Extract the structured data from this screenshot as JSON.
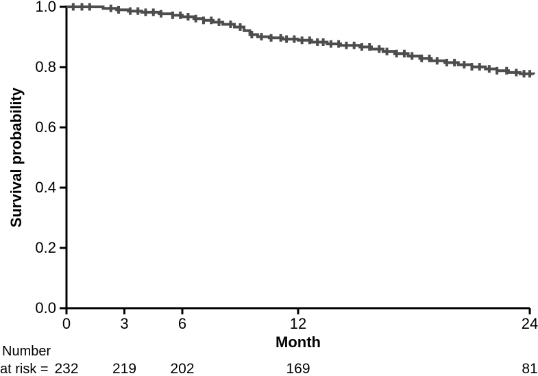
{
  "chart_data": {
    "type": "line",
    "subtype": "kaplan-meier-step",
    "title": "",
    "xlabel": "Month",
    "ylabel": "Survival probability",
    "xlim": [
      0,
      24
    ],
    "ylim": [
      0.0,
      1.0
    ],
    "x_ticks": [
      0,
      3,
      6,
      12,
      24
    ],
    "y_ticks": [
      0.0,
      0.2,
      0.4,
      0.6,
      0.8,
      1.0
    ],
    "grid": false,
    "legend": null,
    "curve_color": "#4d4d4d",
    "axis_color": "#000000",
    "km_points": [
      [
        0,
        1.0
      ],
      [
        1.9,
        0.995
      ],
      [
        2.6,
        0.99
      ],
      [
        3.2,
        0.986
      ],
      [
        3.9,
        0.982
      ],
      [
        4.8,
        0.977
      ],
      [
        5.5,
        0.972
      ],
      [
        6.0,
        0.967
      ],
      [
        6.6,
        0.961
      ],
      [
        7.1,
        0.955
      ],
      [
        7.6,
        0.949
      ],
      [
        8.1,
        0.942
      ],
      [
        8.7,
        0.933
      ],
      [
        9.2,
        0.921
      ],
      [
        9.5,
        0.908
      ],
      [
        9.9,
        0.901
      ],
      [
        10.5,
        0.897
      ],
      [
        11.2,
        0.893
      ],
      [
        12.0,
        0.889
      ],
      [
        12.7,
        0.883
      ],
      [
        13.5,
        0.877
      ],
      [
        14.2,
        0.872
      ],
      [
        15.2,
        0.867
      ],
      [
        15.8,
        0.86
      ],
      [
        16.4,
        0.852
      ],
      [
        17.0,
        0.845
      ],
      [
        17.7,
        0.837
      ],
      [
        18.3,
        0.829
      ],
      [
        18.9,
        0.821
      ],
      [
        19.6,
        0.815
      ],
      [
        20.3,
        0.808
      ],
      [
        21.0,
        0.801
      ],
      [
        21.7,
        0.794
      ],
      [
        22.3,
        0.788
      ],
      [
        22.9,
        0.782
      ],
      [
        23.5,
        0.778
      ],
      [
        24.2,
        0.776
      ]
    ],
    "censor_times": [
      0.35,
      0.8,
      1.2,
      2.3,
      2.7,
      3.3,
      3.7,
      4.1,
      4.5,
      4.9,
      5.5,
      5.9,
      6.3,
      6.7,
      7.1,
      7.5,
      7.9,
      8.5,
      9.0,
      9.6,
      10.1,
      10.6,
      11.1,
      11.4,
      11.8,
      12.2,
      12.6,
      13.0,
      13.3,
      13.7,
      14.1,
      14.5,
      14.9,
      15.3,
      15.7,
      16.2,
      16.6,
      17.1,
      17.5,
      17.9,
      18.4,
      18.8,
      19.2,
      19.7,
      20.1,
      20.6,
      21.0,
      21.4,
      21.9,
      22.3,
      22.8,
      23.3,
      23.7,
      24.0
    ],
    "risk_table": {
      "label_line1": "Number",
      "label_line2": "at risk =",
      "times": [
        0,
        3,
        6,
        12,
        24
      ],
      "counts": [
        232,
        219,
        202,
        169,
        81
      ]
    }
  }
}
